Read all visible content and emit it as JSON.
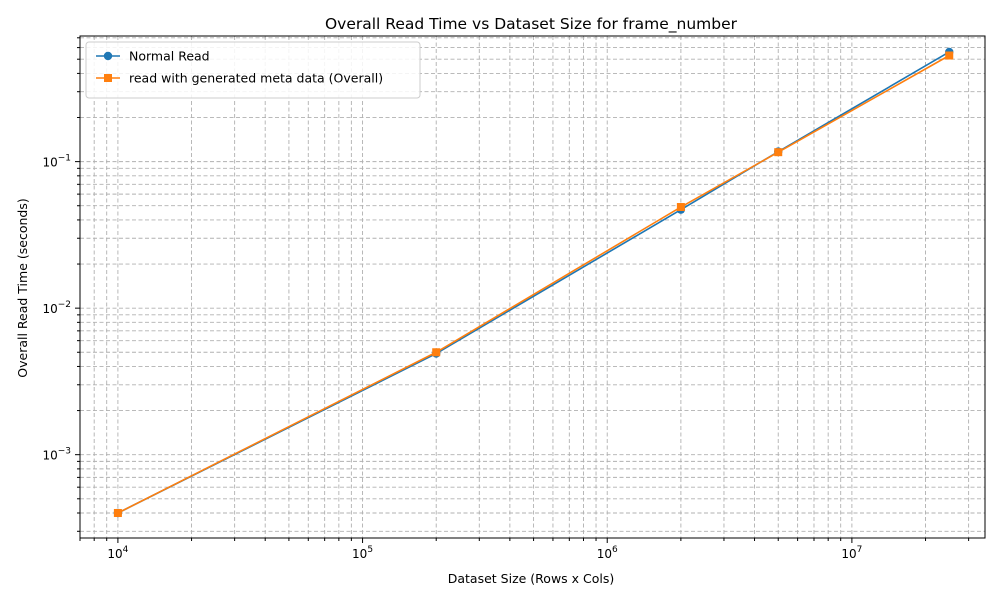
{
  "chart_data": {
    "type": "line",
    "title": "Overall Read Time vs Dataset Size for frame_number",
    "xlabel": "Dataset Size (Rows x Cols)",
    "ylabel": "Overall Read Time (seconds)",
    "x_scale": "log",
    "y_scale": "log",
    "xlim": [
      7000,
      35000000
    ],
    "ylim": [
      0.00027,
      0.72
    ],
    "x_ticks": [
      {
        "value": 10000,
        "base": "10",
        "exp": "4"
      },
      {
        "value": 100000,
        "base": "10",
        "exp": "5"
      },
      {
        "value": 1000000,
        "base": "10",
        "exp": "6"
      },
      {
        "value": 10000000,
        "base": "10",
        "exp": "7"
      }
    ],
    "y_ticks": [
      {
        "value": 0.001,
        "base": "10",
        "exp": "−3"
      },
      {
        "value": 0.01,
        "base": "10",
        "exp": "−2"
      },
      {
        "value": 0.1,
        "base": "10",
        "exp": "−1"
      }
    ],
    "grid": true,
    "grid_minor": true,
    "legend_position": "top-left",
    "series": [
      {
        "name": "Normal Read",
        "color": "#1f77b4",
        "marker": "circle",
        "x": [
          10000,
          200000,
          2000000,
          5000000,
          25000000
        ],
        "y": [
          0.0004,
          0.0049,
          0.047,
          0.117,
          0.56
        ]
      },
      {
        "name": "read with generated meta data (Overall)",
        "color": "#ff7f0e",
        "marker": "square",
        "x": [
          10000,
          200000,
          2000000,
          5000000,
          25000000
        ],
        "y": [
          0.0004,
          0.005,
          0.049,
          0.116,
          0.53
        ]
      }
    ]
  }
}
